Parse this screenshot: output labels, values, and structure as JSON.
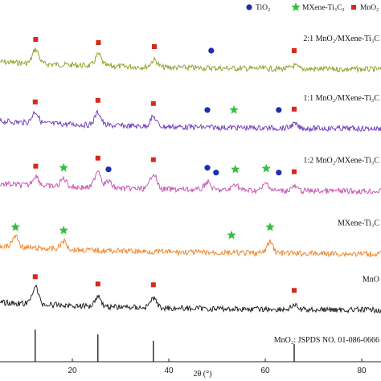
{
  "chart_data": {
    "type": "line",
    "xlabel": "2θ (°)",
    "x_ticks": [
      20,
      40,
      60,
      80
    ],
    "xlim": [
      5,
      84
    ],
    "legend": [
      {
        "name": "TiO₂",
        "symbol": "circle",
        "color": "#1a2fb0"
      },
      {
        "name": "MXene-Ti₃C₂",
        "symbol": "star",
        "color": "#33c03a"
      },
      {
        "name": "MnO₂",
        "symbol": "square",
        "color": "#d42a1f"
      }
    ],
    "series": [
      {
        "name": "2:1 MnO₂/MXene-Ti₃C",
        "color": "#8a9a1c",
        "baseline_frac": 0.1,
        "peaks": [
          {
            "x": 12.4,
            "h": 18
          },
          {
            "x": 25.4,
            "h": 14
          },
          {
            "x": 37.0,
            "h": 9
          },
          {
            "x": 66.0,
            "h": 4
          }
        ],
        "markers": [
          {
            "x": 12.4,
            "type": "square"
          },
          {
            "x": 25.4,
            "type": "square"
          },
          {
            "x": 37.0,
            "type": "square"
          },
          {
            "x": 48.8,
            "type": "circle"
          },
          {
            "x": 66.0,
            "type": "square"
          }
        ]
      },
      {
        "name": "1:1 MnO₂/MXene-Ti₃C",
        "color": "#6a32b8",
        "baseline_frac": 0.28,
        "peaks": [
          {
            "x": 12.3,
            "h": 14
          },
          {
            "x": 25.3,
            "h": 16
          },
          {
            "x": 36.8,
            "h": 12
          },
          {
            "x": 66.0,
            "h": 5
          }
        ],
        "markers": [
          {
            "x": 12.3,
            "type": "square"
          },
          {
            "x": 25.3,
            "type": "square"
          },
          {
            "x": 36.8,
            "type": "square"
          },
          {
            "x": 48.0,
            "type": "circle"
          },
          {
            "x": 53.5,
            "type": "star"
          },
          {
            "x": 62.8,
            "type": "circle"
          },
          {
            "x": 66.0,
            "type": "square"
          }
        ]
      },
      {
        "name": "1:2 MnO₂/MXene-Ti₃C",
        "color": "#c24ab0",
        "baseline_frac": 0.47,
        "peaks": [
          {
            "x": 12.4,
            "h": 12
          },
          {
            "x": 18.2,
            "h": 10
          },
          {
            "x": 25.3,
            "h": 22
          },
          {
            "x": 27.5,
            "h": 8
          },
          {
            "x": 36.8,
            "h": 20
          },
          {
            "x": 48.0,
            "h": 10
          },
          {
            "x": 53.8,
            "h": 8
          },
          {
            "x": 60.2,
            "h": 9
          },
          {
            "x": 66.0,
            "h": 5
          }
        ],
        "markers": [
          {
            "x": 12.4,
            "type": "square"
          },
          {
            "x": 18.2,
            "type": "star"
          },
          {
            "x": 25.3,
            "type": "square"
          },
          {
            "x": 27.5,
            "type": "circle"
          },
          {
            "x": 36.8,
            "type": "square"
          },
          {
            "x": 48.0,
            "type": "circle"
          },
          {
            "x": 49.8,
            "type": "circle"
          },
          {
            "x": 53.8,
            "type": "star"
          },
          {
            "x": 60.2,
            "type": "star"
          },
          {
            "x": 62.8,
            "type": "circle"
          },
          {
            "x": 66.0,
            "type": "square"
          }
        ]
      },
      {
        "name": "MXene-Ti₃C",
        "color": "#f07f1e",
        "baseline_frac": 0.66,
        "peaks": [
          {
            "x": 8.2,
            "h": 14
          },
          {
            "x": 18.2,
            "h": 10
          },
          {
            "x": 61.0,
            "h": 14
          }
        ],
        "markers": [
          {
            "x": 8.2,
            "type": "star"
          },
          {
            "x": 18.2,
            "type": "star"
          },
          {
            "x": 53.0,
            "type": "star"
          },
          {
            "x": 61.0,
            "type": "star"
          }
        ]
      },
      {
        "name": "MnO",
        "color": "#111111",
        "baseline_frac": 0.83,
        "peaks": [
          {
            "x": 12.3,
            "h": 22
          },
          {
            "x": 25.3,
            "h": 13
          },
          {
            "x": 36.8,
            "h": 12
          },
          {
            "x": 66.0,
            "h": 5
          }
        ],
        "markers": [
          {
            "x": 12.3,
            "type": "square"
          },
          {
            "x": 25.3,
            "type": "square"
          },
          {
            "x": 36.8,
            "type": "square"
          },
          {
            "x": 66.0,
            "type": "square"
          }
        ]
      }
    ],
    "reference": {
      "label": "MnO₂: JSPDS NO. 01-086-0666",
      "lines": [
        {
          "x": 12.3,
          "rel": 1.0
        },
        {
          "x": 25.3,
          "rel": 0.85
        },
        {
          "x": 36.8,
          "rel": 0.65
        },
        {
          "x": 66.0,
          "rel": 0.55
        }
      ]
    }
  }
}
